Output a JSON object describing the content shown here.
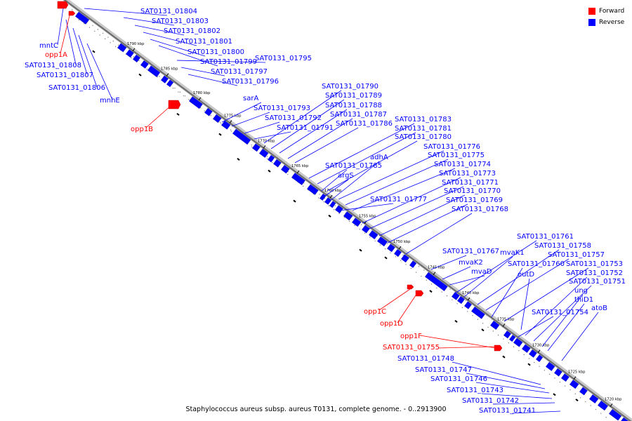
{
  "legend": {
    "forward_label": "Forward",
    "reverse_label": "Reverse",
    "forward_color": "#ff0000",
    "reverse_color": "#0000ff"
  },
  "genome_title": "Staphylococcus aureus subsp. aureus T0131, complete genome. - 0..2913900",
  "axis": {
    "ticks": [
      "1790 kbp",
      "1785 kbp",
      "1780 kbp",
      "1775 kbp",
      "1770 kbp",
      "1765 kbp",
      "1760 kbp",
      "1755 kbp",
      "1750 kbp",
      "1745 kbp",
      "1740 kbp",
      "1735 kbp",
      "1730 kbp",
      "1725 kbp",
      "1720 kbp"
    ]
  },
  "genes": {
    "reverse": [
      {
        "label": "SAT0131_01804"
      },
      {
        "label": "SAT0131_01803"
      },
      {
        "label": "SAT0131_01802"
      },
      {
        "label": "SAT0131_01801"
      },
      {
        "label": "SAT0131_01800"
      },
      {
        "label": "SAT0131_01799"
      },
      {
        "label": "SAT0131_01795"
      },
      {
        "label": "SAT0131_01797"
      },
      {
        "label": "SAT0131_01796"
      },
      {
        "label": "mntC"
      },
      {
        "label": "SAT0131_01808"
      },
      {
        "label": "SAT0131_01807"
      },
      {
        "label": "SAT0131_01806"
      },
      {
        "label": "mnhE"
      },
      {
        "label": "sarA"
      },
      {
        "label": "SAT0131_01793"
      },
      {
        "label": "SAT0131_01792"
      },
      {
        "label": "SAT0131_01791"
      },
      {
        "label": "SAT0131_01790"
      },
      {
        "label": "SAT0131_01789"
      },
      {
        "label": "SAT0131_01788"
      },
      {
        "label": "SAT0131_01787"
      },
      {
        "label": "SAT0131_01786"
      },
      {
        "label": "SAT0131_01783"
      },
      {
        "label": "SAT0131_01781"
      },
      {
        "label": "SAT0131_01780"
      },
      {
        "label": "SAT0131_01776"
      },
      {
        "label": "SAT0131_01775"
      },
      {
        "label": "SAT0131_01774"
      },
      {
        "label": "adhA"
      },
      {
        "label": "SAT0131_01785"
      },
      {
        "label": "argS"
      },
      {
        "label": "SAT0131_01773"
      },
      {
        "label": "SAT0131_01771"
      },
      {
        "label": "SAT0131_01770"
      },
      {
        "label": "SAT0131_01769"
      },
      {
        "label": "SAT0131_01777"
      },
      {
        "label": "SAT0131_01768"
      },
      {
        "label": "SAT0131_01761"
      },
      {
        "label": "SAT0131_01767"
      },
      {
        "label": "mvaK1"
      },
      {
        "label": "SAT0131_01758"
      },
      {
        "label": "SAT0131_01757"
      },
      {
        "label": "mvaK2"
      },
      {
        "label": "SAT0131_01760"
      },
      {
        "label": "SAT0131_01753"
      },
      {
        "label": "mvaD"
      },
      {
        "label": "eutD"
      },
      {
        "label": "SAT0131_01752"
      },
      {
        "label": "SAT0131_01751"
      },
      {
        "label": "ung"
      },
      {
        "label": "thiD1"
      },
      {
        "label": "atoB"
      },
      {
        "label": "SAT0131_01754"
      },
      {
        "label": "SAT0131_01748"
      },
      {
        "label": "SAT0131_01747"
      },
      {
        "label": "SAT0131_01746"
      },
      {
        "label": "SAT0131_01743"
      },
      {
        "label": "SAT0131_01742"
      },
      {
        "label": "SAT0131_01741"
      }
    ],
    "forward": [
      {
        "label": "opp1A"
      },
      {
        "label": "opp1B"
      },
      {
        "label": "opp1C"
      },
      {
        "label": "opp1D"
      },
      {
        "label": "opp1F"
      },
      {
        "label": "SAT0131_01755"
      }
    ]
  }
}
